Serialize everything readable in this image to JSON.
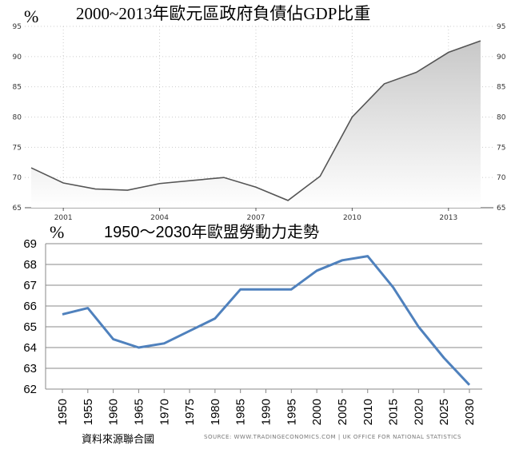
{
  "chart_data": [
    {
      "type": "area",
      "title": "2000~2013年歐元區政府負債佔GDP比重",
      "ylabel": "%",
      "xlabel": "",
      "x": [
        2000,
        2001,
        2002,
        2003,
        2004,
        2005,
        2006,
        2007,
        2008,
        2009,
        2010,
        2011,
        2012,
        2013,
        2014
      ],
      "x_tick_labels": [
        "2001",
        "2004",
        "2007",
        "2010",
        "2013"
      ],
      "x_tick_values": [
        2001,
        2004,
        2007,
        2010,
        2013
      ],
      "values": [
        71.6,
        69.1,
        68.1,
        67.9,
        69.0,
        69.5,
        70.0,
        68.4,
        66.2,
        70.2,
        80.0,
        85.5,
        87.4,
        90.7,
        92.6
      ],
      "xlim": [
        1999.8,
        2014.4
      ],
      "ylim": [
        65,
        95
      ],
      "y_ticks": [
        65,
        70,
        75,
        80,
        85,
        90,
        95
      ],
      "grid": true,
      "legend": "none",
      "colors": {
        "line": "#555555",
        "fill_top": "#c8c8c8",
        "fill_bottom": "#ffffff",
        "grid": "#cccccc"
      }
    },
    {
      "type": "line",
      "title": "1950～2030年歐盟勞動力走勢",
      "ylabel": "%",
      "xlabel": "",
      "categories": [
        "1950",
        "1955",
        "1960",
        "1965",
        "1970",
        "1975",
        "1980",
        "1985",
        "1990",
        "1995",
        "2000",
        "2005",
        "2010",
        "2015",
        "2020",
        "2025",
        "2030"
      ],
      "values": [
        65.6,
        65.9,
        64.4,
        64.0,
        64.2,
        64.8,
        65.4,
        66.8,
        66.8,
        66.8,
        67.7,
        68.2,
        68.4,
        66.9,
        65.0,
        63.5,
        62.2
      ],
      "ylim": [
        62,
        69
      ],
      "y_ticks": [
        62,
        63,
        64,
        65,
        66,
        67,
        68,
        69
      ],
      "grid": true,
      "legend": "none",
      "colors": {
        "line": "#4f81bd",
        "grid": "#888888"
      }
    }
  ],
  "percent_symbol": "%",
  "source_text": "SOURCE: WWW.TRADINGECONOMICS.COM  |  UK OFFICE FOR NATIONAL STATISTICS",
  "caption": "資料來源聯合國"
}
